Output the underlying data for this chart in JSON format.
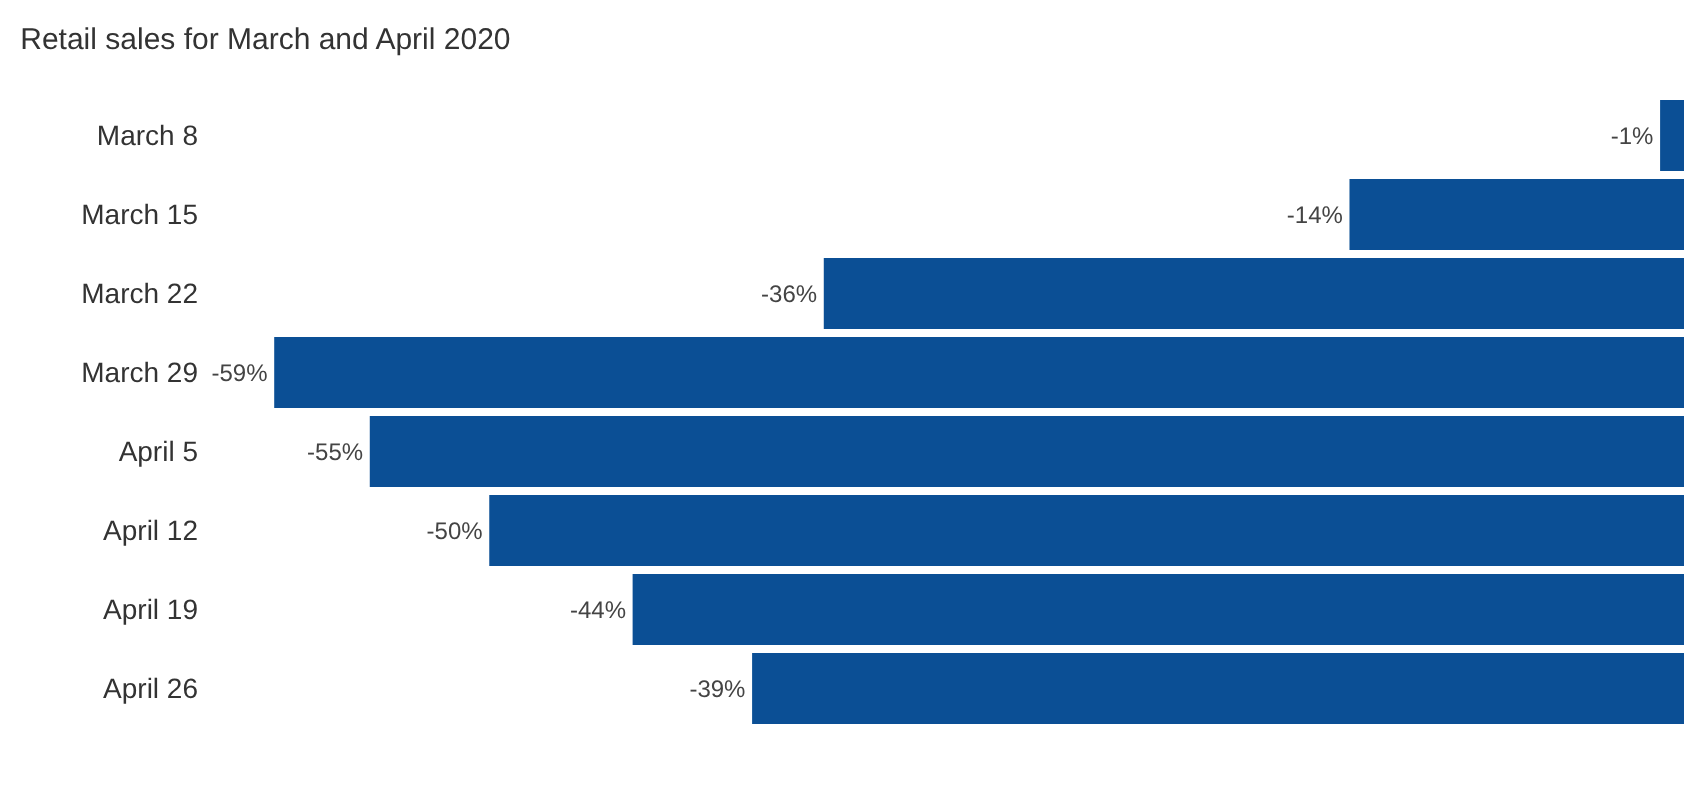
{
  "chart_data": {
    "type": "bar",
    "orientation": "horizontal",
    "title": "Retail sales for March and April 2020",
    "categories": [
      "March 8",
      "March 15",
      "March 22",
      "March 29",
      "April 5",
      "April 12",
      "April 19",
      "April 26"
    ],
    "values": [
      -1,
      -14,
      -36,
      -59,
      -55,
      -50,
      -44,
      -39
    ],
    "value_labels": [
      "-1%",
      "-14%",
      "-36%",
      "-59%",
      "-55%",
      "-50%",
      "-44%",
      "-39%"
    ],
    "color": "#0b4f95",
    "tick_labels": "y"
  }
}
